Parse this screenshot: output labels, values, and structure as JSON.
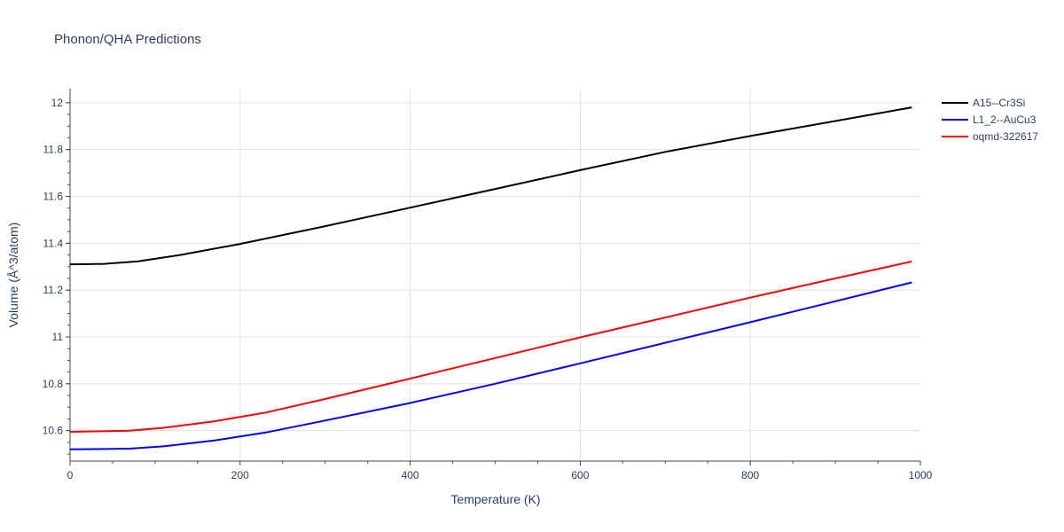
{
  "chart_data": {
    "type": "line",
    "title": "Phonon/QHA Predictions",
    "xlabel": "Temperature (K)",
    "ylabel": "Volume (Å^3/atom)",
    "xlim": [
      0,
      1000
    ],
    "ylim": [
      10.47,
      12.06
    ],
    "x_ticks": [
      0,
      200,
      400,
      600,
      800,
      1000
    ],
    "y_ticks": [
      10.6,
      10.8,
      11,
      11.2,
      11.4,
      11.6,
      11.8,
      12
    ],
    "x_tick_labels": [
      "0",
      "200",
      "400",
      "600",
      "800",
      "1000"
    ],
    "y_tick_labels": [
      "10.6",
      "10.8",
      "11",
      "11.2",
      "11.4",
      "11.6",
      "11.8",
      "12"
    ],
    "grid": true,
    "legend_position": "top-right",
    "series": [
      {
        "name": "A15--Cr3Si",
        "color": "#000000",
        "x": [
          0,
          40,
          80,
          130,
          200,
          300,
          400,
          500,
          600,
          700,
          800,
          900,
          990
        ],
        "y": [
          11.31,
          11.312,
          11.323,
          11.35,
          11.397,
          11.473,
          11.552,
          11.632,
          11.712,
          11.79,
          11.858,
          11.922,
          11.98
        ]
      },
      {
        "name": "L1_2--AuCu3",
        "color": "#0000ff",
        "x": [
          0,
          30,
          70,
          110,
          170,
          230,
          300,
          400,
          500,
          600,
          700,
          800,
          900,
          990
        ],
        "y": [
          10.52,
          10.521,
          10.523,
          10.533,
          10.558,
          10.592,
          10.643,
          10.718,
          10.8,
          10.887,
          10.975,
          11.063,
          11.152,
          11.233
        ]
      },
      {
        "name": "oqmd-322617",
        "color": "#ff0000",
        "x": [
          0,
          30,
          70,
          110,
          170,
          230,
          300,
          400,
          500,
          600,
          700,
          800,
          900,
          990
        ],
        "y": [
          10.595,
          10.597,
          10.6,
          10.612,
          10.64,
          10.677,
          10.735,
          10.822,
          10.91,
          10.998,
          11.083,
          11.168,
          11.25,
          11.322
        ]
      }
    ]
  }
}
